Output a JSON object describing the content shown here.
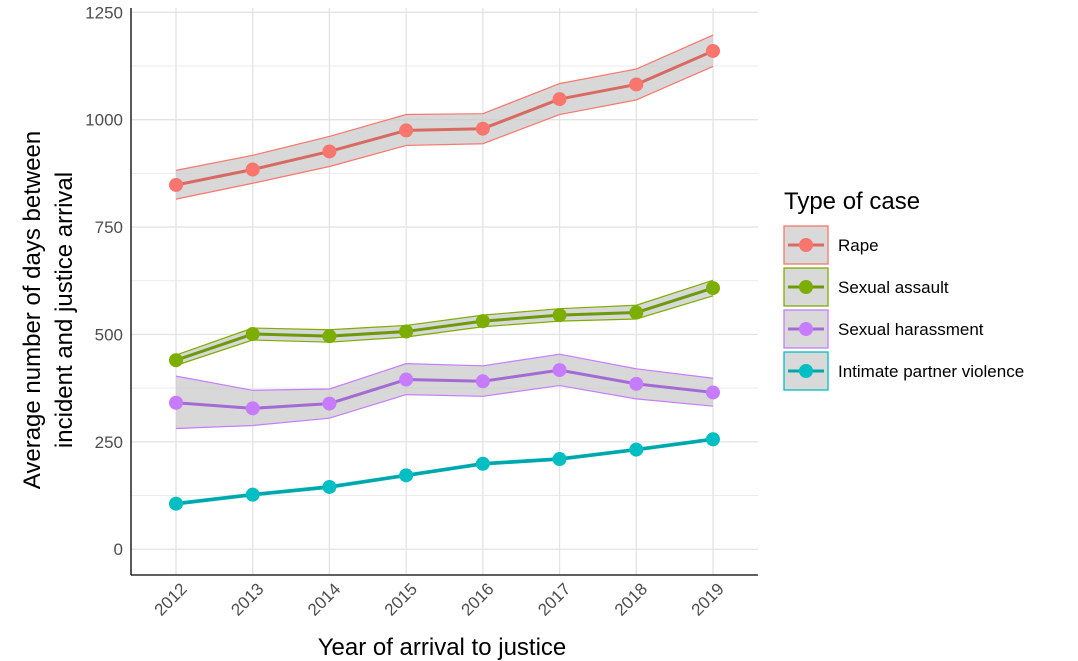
{
  "chart_data": {
    "type": "line",
    "xlabel": "Year of arrival to justice",
    "ylabel_lines": [
      "Average number of days between",
      "incident and justice arrival"
    ],
    "x": [
      "2012",
      "2013",
      "2014",
      "2015",
      "2016",
      "2017",
      "2018",
      "2019"
    ],
    "ylim": [
      -60,
      1260
    ],
    "yticks": [
      0,
      250,
      500,
      750,
      1000,
      1250
    ],
    "yticks_labels": [
      "0",
      "250",
      "500",
      "750",
      "1000",
      "1250"
    ],
    "grid": true,
    "legend_title": "Type of case",
    "legend_position": "right",
    "series": [
      {
        "name": "Rape",
        "color": "#F8766D",
        "line_color": "#d96a62",
        "values": [
          848,
          884,
          926,
          975,
          979,
          1048,
          1082,
          1160
        ],
        "lower": [
          815,
          852,
          891,
          940,
          944,
          1012,
          1046,
          1124
        ],
        "upper": [
          882,
          917,
          961,
          1012,
          1014,
          1084,
          1118,
          1197
        ]
      },
      {
        "name": "Sexual assault",
        "color": "#7CAE00",
        "line_color": "#6b9a0a",
        "values": [
          440,
          501,
          496,
          507,
          531,
          545,
          551,
          608
        ],
        "lower": [
          428,
          487,
          482,
          494,
          518,
          531,
          536,
          590
        ],
        "upper": [
          452,
          515,
          511,
          521,
          545,
          560,
          568,
          626
        ]
      },
      {
        "name": "Sexual harassment",
        "color": "#C77CFF",
        "line_color": "#a56bd4",
        "values": [
          341,
          328,
          339,
          395,
          391,
          417,
          385,
          365
        ],
        "lower": [
          281,
          288,
          305,
          360,
          356,
          381,
          350,
          333
        ],
        "upper": [
          403,
          370,
          373,
          432,
          427,
          454,
          420,
          398
        ]
      },
      {
        "name": "Intimate partner violence",
        "color": "#00BFC4",
        "line_color": "#00a6ab",
        "values": [
          106,
          127,
          145,
          172,
          199,
          210,
          232,
          256
        ],
        "lower": [
          103,
          124,
          142,
          169,
          196,
          207,
          229,
          253
        ],
        "upper": [
          109,
          130,
          148,
          175,
          202,
          213,
          235,
          259
        ]
      }
    ]
  }
}
